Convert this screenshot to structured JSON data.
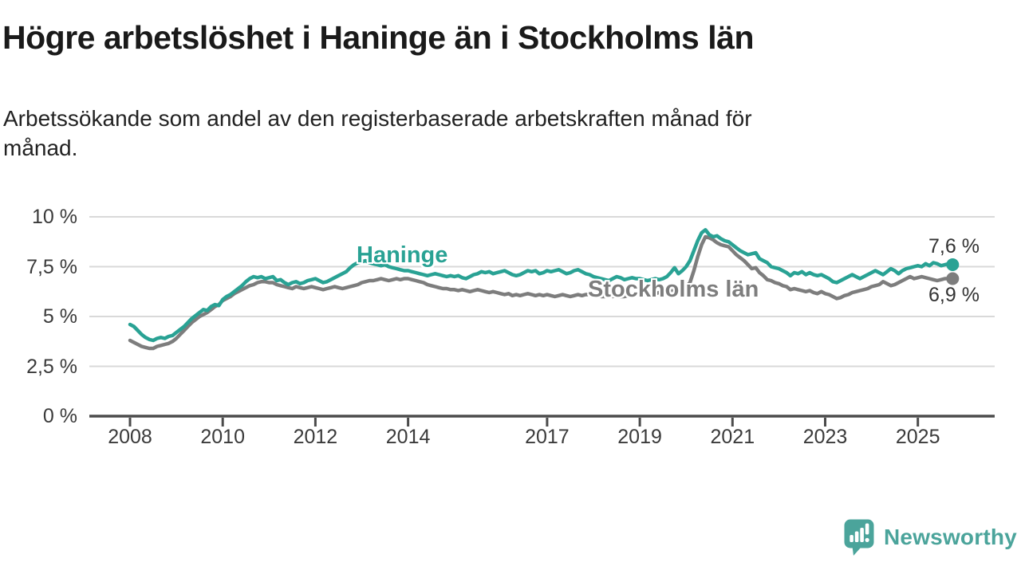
{
  "chart_data": {
    "type": "line",
    "title": "Högre arbetslöshet i Haninge än i Stockholms län",
    "subtitle": "Arbetssökande som andel av den registerbaserade arbetskraften månad för månad.",
    "unit": "%",
    "frequency": "monthly",
    "x_start_year": 2008,
    "x_ticks": [
      2008,
      2010,
      2012,
      2014,
      2017,
      2019,
      2021,
      2023,
      2025
    ],
    "y_ticks": [
      {
        "value": 0,
        "label": "0 %"
      },
      {
        "value": 2.5,
        "label": "2,5 %"
      },
      {
        "value": 5,
        "label": "5 %"
      },
      {
        "value": 7.5,
        "label": "7,5 %"
      },
      {
        "value": 10,
        "label": "10 %"
      }
    ],
    "ylim": [
      0,
      10.5
    ],
    "grid": true,
    "grid_color": "#D9D9D9",
    "axis_color": "#4B4B4B",
    "legend_position": "inline-labels",
    "series": [
      {
        "name": "Haninge",
        "color": "#29A294",
        "end_label": "7,6 %",
        "last_value": 7.6,
        "values": [
          4.6,
          4.5,
          4.3,
          4.1,
          3.95,
          3.85,
          3.8,
          3.9,
          3.95,
          3.9,
          4.0,
          4.05,
          4.2,
          4.35,
          4.5,
          4.7,
          4.9,
          5.05,
          5.2,
          5.35,
          5.3,
          5.5,
          5.6,
          5.55,
          5.85,
          6.0,
          6.1,
          6.25,
          6.4,
          6.55,
          6.75,
          6.9,
          7.0,
          6.95,
          7.0,
          6.9,
          6.95,
          7.0,
          6.8,
          6.85,
          6.7,
          6.6,
          6.7,
          6.75,
          6.65,
          6.7,
          6.8,
          6.85,
          6.9,
          6.8,
          6.7,
          6.75,
          6.85,
          6.95,
          7.05,
          7.15,
          7.25,
          7.45,
          7.6,
          7.7,
          7.75,
          7.8,
          7.7,
          7.65,
          7.6,
          7.55,
          7.6,
          7.5,
          7.45,
          7.4,
          7.35,
          7.3,
          7.3,
          7.25,
          7.2,
          7.15,
          7.1,
          7.05,
          7.1,
          7.15,
          7.1,
          7.05,
          7.0,
          7.05,
          7.0,
          7.05,
          6.95,
          6.9,
          7.0,
          7.1,
          7.15,
          7.25,
          7.2,
          7.25,
          7.15,
          7.2,
          7.25,
          7.3,
          7.2,
          7.1,
          7.05,
          7.1,
          7.2,
          7.3,
          7.25,
          7.3,
          7.15,
          7.2,
          7.3,
          7.25,
          7.3,
          7.35,
          7.25,
          7.15,
          7.2,
          7.3,
          7.35,
          7.25,
          7.15,
          7.1,
          7.0,
          6.95,
          6.9,
          6.85,
          6.8,
          6.9,
          7.0,
          6.95,
          6.85,
          6.9,
          6.95,
          6.9,
          6.9,
          6.85,
          6.8,
          6.85,
          6.9,
          6.85,
          6.9,
          7.0,
          7.2,
          7.45,
          7.15,
          7.3,
          7.5,
          7.8,
          8.3,
          8.8,
          9.2,
          9.35,
          9.1,
          9.0,
          9.05,
          8.9,
          8.8,
          8.75,
          8.6,
          8.45,
          8.3,
          8.2,
          8.1,
          8.15,
          8.2,
          7.9,
          7.8,
          7.7,
          7.5,
          7.45,
          7.4,
          7.3,
          7.2,
          7.05,
          7.2,
          7.15,
          7.25,
          7.1,
          7.2,
          7.1,
          7.05,
          7.1,
          7.0,
          6.9,
          6.75,
          6.7,
          6.8,
          6.9,
          7.0,
          7.1,
          7.0,
          6.9,
          7.0,
          7.1,
          7.2,
          7.3,
          7.2,
          7.1,
          7.25,
          7.4,
          7.3,
          7.15,
          7.3,
          7.4,
          7.45,
          7.5,
          7.55,
          7.5,
          7.65,
          7.55,
          7.7,
          7.65,
          7.55,
          7.6,
          7.65,
          7.6
        ]
      },
      {
        "name": "Stockholms län",
        "color": "#7D7D7D",
        "end_label": "6,9 %",
        "last_value": 6.9,
        "values": [
          3.8,
          3.7,
          3.6,
          3.5,
          3.45,
          3.4,
          3.4,
          3.5,
          3.55,
          3.6,
          3.65,
          3.75,
          3.9,
          4.1,
          4.3,
          4.5,
          4.7,
          4.85,
          5.0,
          5.1,
          5.2,
          5.35,
          5.5,
          5.6,
          5.8,
          5.9,
          6.0,
          6.15,
          6.25,
          6.35,
          6.45,
          6.55,
          6.6,
          6.7,
          6.75,
          6.75,
          6.7,
          6.7,
          6.6,
          6.55,
          6.5,
          6.45,
          6.4,
          6.5,
          6.45,
          6.4,
          6.45,
          6.5,
          6.45,
          6.4,
          6.35,
          6.4,
          6.45,
          6.5,
          6.45,
          6.4,
          6.45,
          6.5,
          6.55,
          6.6,
          6.7,
          6.75,
          6.8,
          6.8,
          6.85,
          6.9,
          6.85,
          6.8,
          6.85,
          6.9,
          6.85,
          6.9,
          6.9,
          6.85,
          6.8,
          6.75,
          6.7,
          6.6,
          6.55,
          6.5,
          6.45,
          6.4,
          6.4,
          6.35,
          6.35,
          6.3,
          6.35,
          6.3,
          6.25,
          6.3,
          6.35,
          6.3,
          6.25,
          6.2,
          6.25,
          6.2,
          6.15,
          6.1,
          6.15,
          6.05,
          6.1,
          6.05,
          6.1,
          6.15,
          6.1,
          6.05,
          6.1,
          6.05,
          6.1,
          6.05,
          6.0,
          6.05,
          6.1,
          6.05,
          6.0,
          6.05,
          6.1,
          6.05,
          6.1,
          6.1,
          6.1,
          6.05,
          6.0,
          6.0,
          6.05,
          6.0,
          6.05,
          6.0,
          6.0,
          6.05,
          6.1,
          6.1,
          6.1,
          6.1,
          6.15,
          6.1,
          6.15,
          6.2,
          6.2,
          6.25,
          6.3,
          6.35,
          6.3,
          6.35,
          6.5,
          6.7,
          7.3,
          8.0,
          8.6,
          9.0,
          8.95,
          8.85,
          8.7,
          8.6,
          8.55,
          8.5,
          8.3,
          8.1,
          7.95,
          7.8,
          7.6,
          7.4,
          7.45,
          7.2,
          7.05,
          6.85,
          6.8,
          6.7,
          6.65,
          6.55,
          6.5,
          6.35,
          6.4,
          6.35,
          6.3,
          6.25,
          6.3,
          6.2,
          6.15,
          6.25,
          6.15,
          6.1,
          6.0,
          5.9,
          5.95,
          6.05,
          6.1,
          6.2,
          6.25,
          6.3,
          6.35,
          6.4,
          6.5,
          6.55,
          6.6,
          6.75,
          6.65,
          6.55,
          6.6,
          6.7,
          6.8,
          6.9,
          7.0,
          6.9,
          6.95,
          7.0,
          6.95,
          6.9,
          6.85,
          6.8,
          6.85,
          6.9,
          6.9,
          6.9
        ]
      }
    ]
  },
  "branding": {
    "logo_text": "Newsworthy",
    "logo_color": "#4BA49B",
    "logo_icon": "bar-chart-speech-bubble"
  }
}
